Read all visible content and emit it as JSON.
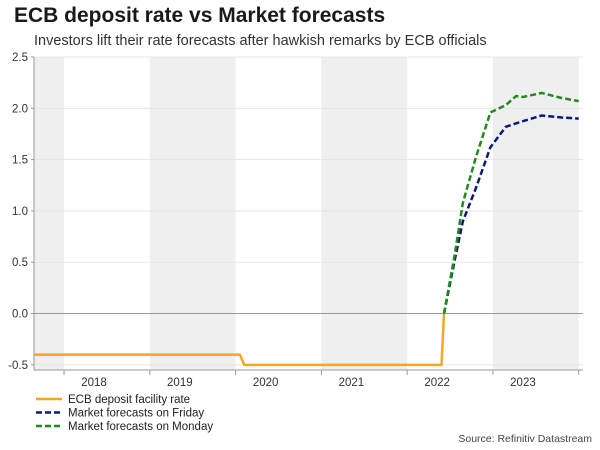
{
  "title": "ECB deposit rate vs Market forecasts",
  "subtitle": "Investors lift their rate forecasts after hawkish remarks by ECB officials",
  "source": "Source: Refinitiv Datastream",
  "chart_data": {
    "type": "line",
    "title": "ECB deposit rate vs Market forecasts",
    "subtitle": "Investors lift their rate forecasts after hawkish remarks by ECB officials",
    "xlabel": "",
    "ylabel": "",
    "xlim": [
      2017.3,
      2023.7
    ],
    "ylim": [
      -0.55,
      2.5
    ],
    "y_ticks": [
      -0.5,
      0.0,
      0.5,
      1.0,
      1.5,
      2.0,
      2.5
    ],
    "y_tick_labels": [
      "-0.5",
      "0.0",
      "0.5",
      "1.0",
      "1.5",
      "2.0",
      "2.5"
    ],
    "x_tick_labels": [
      "2018",
      "2019",
      "2020",
      "2021",
      "2022",
      "2023"
    ],
    "x_tick_positions": [
      2018.0,
      2019.0,
      2020.0,
      2021.0,
      2022.0,
      2023.0
    ],
    "shaded_year_bands": [
      [
        2017.3,
        2017.65
      ],
      [
        2018.65,
        2019.65
      ],
      [
        2020.65,
        2021.65
      ],
      [
        2022.65,
        2023.65
      ]
    ],
    "grid": true,
    "zero_line": true,
    "legend_position": "bottom-left",
    "series": [
      {
        "name": "ECB deposit facility rate",
        "color": "#f5a623",
        "style": "solid",
        "x": [
          2017.3,
          2019.0,
          2019.7,
          2019.75,
          2022.05,
          2022.08
        ],
        "y": [
          -0.4,
          -0.4,
          -0.4,
          -0.5,
          -0.5,
          0.0
        ]
      },
      {
        "name": "Market forecasts on Friday",
        "color": "#0b1a7a",
        "style": "dashed",
        "x": [
          2022.08,
          2022.2,
          2022.3,
          2022.45,
          2022.62,
          2022.8,
          2022.98,
          2023.22,
          2023.45,
          2023.65
        ],
        "y": [
          0.0,
          0.5,
          0.9,
          1.22,
          1.62,
          1.82,
          1.87,
          1.93,
          1.91,
          1.9
        ]
      },
      {
        "name": "Market forecasts on Monday",
        "color": "#1f8a1f",
        "style": "dashed",
        "x": [
          2022.08,
          2022.2,
          2022.3,
          2022.45,
          2022.62,
          2022.8,
          2022.92,
          2023.0,
          2023.22,
          2023.45,
          2023.65
        ],
        "y": [
          0.0,
          0.55,
          1.08,
          1.52,
          1.96,
          2.03,
          2.12,
          2.11,
          2.15,
          2.1,
          2.07
        ]
      }
    ]
  }
}
